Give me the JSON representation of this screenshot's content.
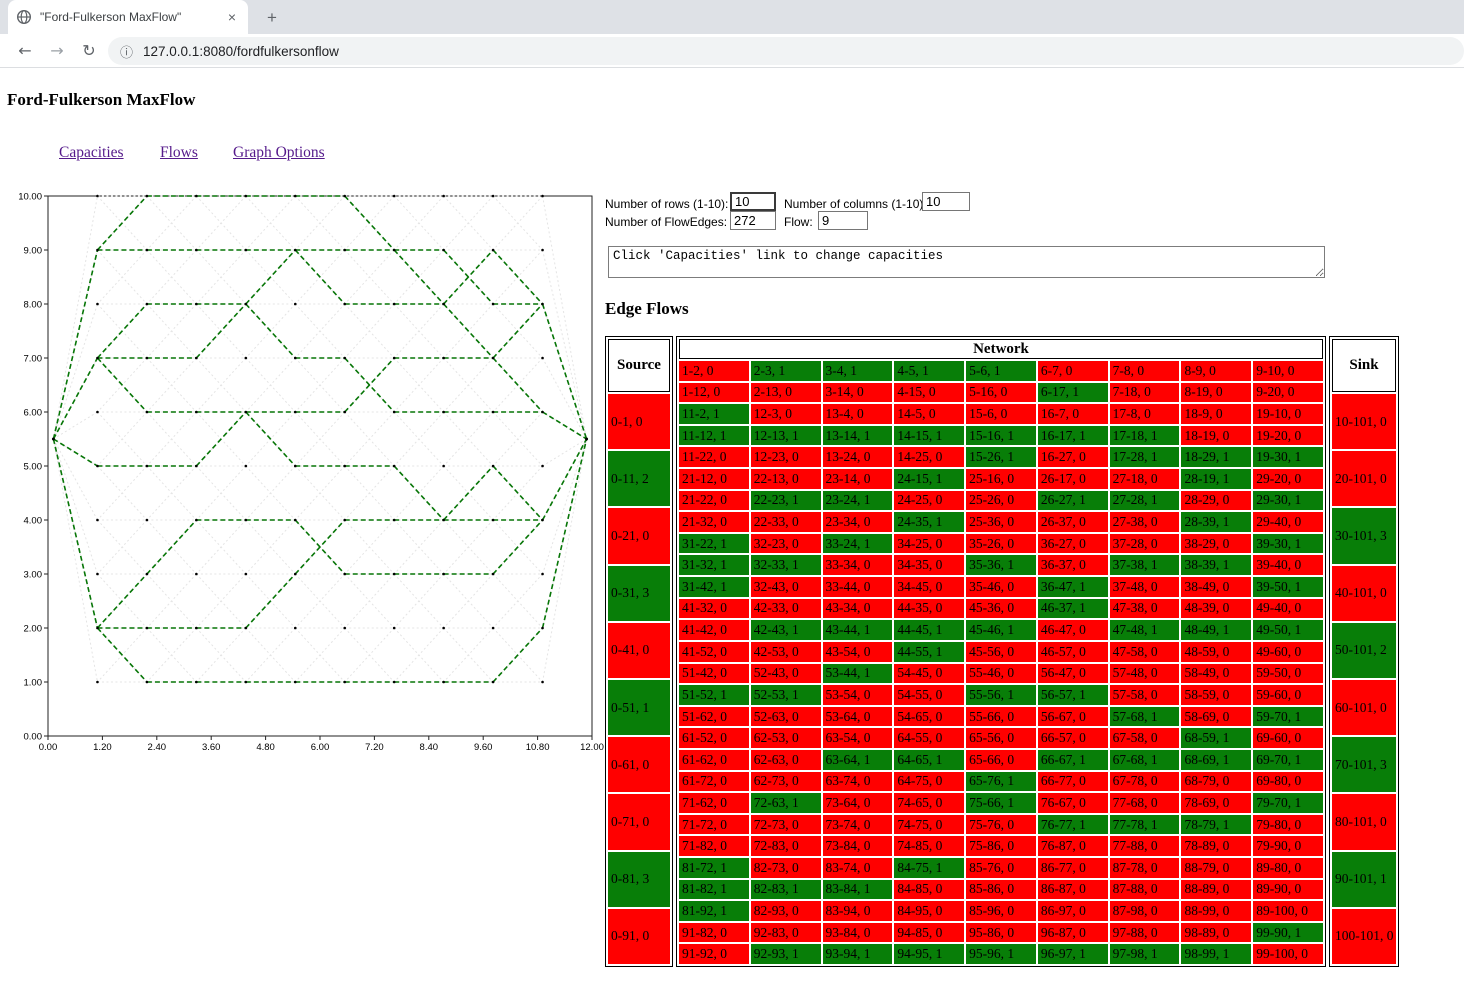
{
  "browser": {
    "tab_title": "\"Ford-Fulkerson MaxFlow\"",
    "close_glyph": "×",
    "new_tab_glyph": "+",
    "back_glyph": "←",
    "forward_glyph": "→",
    "reload_glyph": "↻",
    "info_glyph": "ⓘ",
    "url": "127.0.0.1:8080/fordfulkersonflow"
  },
  "page": {
    "title": "Ford-Fulkerson MaxFlow",
    "nav_links": [
      {
        "label": "Capacities"
      },
      {
        "label": "Flows"
      },
      {
        "label": "Graph Options"
      }
    ],
    "form": {
      "rows_label": "Number of rows (1-10):",
      "rows_value": "10",
      "columns_label": "Number of columns (1-10):",
      "columns_value": "10",
      "flowedges_label": "Number of FlowEdges:",
      "flowedges_value": "272",
      "flow_label": "Flow:",
      "flow_value": "9",
      "message": "Click 'Capacities' link to change capacities"
    },
    "section_heading": "Edge Flows"
  },
  "table": {
    "source_header": "Source",
    "network_header": "Network",
    "sink_header": "Sink",
    "colors": {
      "no_flow": "#FF0000",
      "flow": "#087E08"
    },
    "source_cells": [
      "0-1, 0",
      "0-11, 2",
      "0-21, 0",
      "0-31, 3",
      "0-41, 0",
      "0-51, 1",
      "0-61, 0",
      "0-71, 0",
      "0-81, 3",
      "0-91, 0"
    ],
    "sink_cells": [
      "10-101, 0",
      "20-101, 0",
      "30-101, 3",
      "40-101, 0",
      "50-101, 2",
      "60-101, 0",
      "70-101, 3",
      "80-101, 0",
      "90-101, 1",
      "100-101, 0"
    ],
    "network_rows": [
      [
        "1-2, 0",
        "2-3, 1",
        "3-4, 1",
        "4-5, 1",
        "5-6, 1",
        "6-7, 0",
        "7-8, 0",
        "8-9, 0",
        "9-10, 0"
      ],
      [
        "1-12, 0",
        "2-13, 0",
        "3-14, 0",
        "4-15, 0",
        "5-16, 0",
        "6-17, 1",
        "7-18, 0",
        "8-19, 0",
        "9-20, 0"
      ],
      [
        "11-2, 1",
        "12-3, 0",
        "13-4, 0",
        "14-5, 0",
        "15-6, 0",
        "16-7, 0",
        "17-8, 0",
        "18-9, 0",
        "19-10, 0"
      ],
      [
        "11-12, 1",
        "12-13, 1",
        "13-14, 1",
        "14-15, 1",
        "15-16, 1",
        "16-17, 1",
        "17-18, 1",
        "18-19, 0",
        "19-20, 0"
      ],
      [
        "11-22, 0",
        "12-23, 0",
        "13-24, 0",
        "14-25, 0",
        "15-26, 1",
        "16-27, 0",
        "17-28, 1",
        "18-29, 1",
        "19-30, 1"
      ],
      [
        "21-12, 0",
        "22-13, 0",
        "23-14, 0",
        "24-15, 1",
        "25-16, 0",
        "26-17, 0",
        "27-18, 0",
        "28-19, 1",
        "29-20, 0"
      ],
      [
        "21-22, 0",
        "22-23, 1",
        "23-24, 1",
        "24-25, 0",
        "25-26, 0",
        "26-27, 1",
        "27-28, 1",
        "28-29, 0",
        "29-30, 1"
      ],
      [
        "21-32, 0",
        "22-33, 0",
        "23-34, 0",
        "24-35, 1",
        "25-36, 0",
        "26-37, 0",
        "27-38, 0",
        "28-39, 1",
        "29-40, 0"
      ],
      [
        "31-22, 1",
        "32-23, 0",
        "33-24, 1",
        "34-25, 0",
        "35-26, 0",
        "36-27, 0",
        "37-28, 0",
        "38-29, 0",
        "39-30, 1"
      ],
      [
        "31-32, 1",
        "32-33, 1",
        "33-34, 0",
        "34-35, 0",
        "35-36, 1",
        "36-37, 0",
        "37-38, 1",
        "38-39, 1",
        "39-40, 0"
      ],
      [
        "31-42, 1",
        "32-43, 0",
        "33-44, 0",
        "34-45, 0",
        "35-46, 0",
        "36-47, 1",
        "37-48, 0",
        "38-49, 0",
        "39-50, 1"
      ],
      [
        "41-32, 0",
        "42-33, 0",
        "43-34, 0",
        "44-35, 0",
        "45-36, 0",
        "46-37, 1",
        "47-38, 0",
        "48-39, 0",
        "49-40, 0"
      ],
      [
        "41-42, 0",
        "42-43, 1",
        "43-44, 1",
        "44-45, 1",
        "45-46, 1",
        "46-47, 0",
        "47-48, 1",
        "48-49, 1",
        "49-50, 1"
      ],
      [
        "41-52, 0",
        "42-53, 0",
        "43-54, 0",
        "44-55, 1",
        "45-56, 0",
        "46-57, 0",
        "47-58, 0",
        "48-59, 0",
        "49-60, 0"
      ],
      [
        "51-42, 0",
        "52-43, 0",
        "53-44, 1",
        "54-45, 0",
        "55-46, 0",
        "56-47, 0",
        "57-48, 0",
        "58-49, 0",
        "59-50, 0"
      ],
      [
        "51-52, 1",
        "52-53, 1",
        "53-54, 0",
        "54-55, 0",
        "55-56, 1",
        "56-57, 1",
        "57-58, 0",
        "58-59, 0",
        "59-60, 0"
      ],
      [
        "51-62, 0",
        "52-63, 0",
        "53-64, 0",
        "54-65, 0",
        "55-66, 0",
        "56-67, 0",
        "57-68, 1",
        "58-69, 0",
        "59-70, 1"
      ],
      [
        "61-52, 0",
        "62-53, 0",
        "63-54, 0",
        "64-55, 0",
        "65-56, 0",
        "66-57, 0",
        "67-58, 0",
        "68-59, 1",
        "69-60, 0"
      ],
      [
        "61-62, 0",
        "62-63, 0",
        "63-64, 1",
        "64-65, 1",
        "65-66, 0",
        "66-67, 1",
        "67-68, 1",
        "68-69, 1",
        "69-70, 1"
      ],
      [
        "61-72, 0",
        "62-73, 0",
        "63-74, 0",
        "64-75, 0",
        "65-76, 1",
        "66-77, 0",
        "67-78, 0",
        "68-79, 0",
        "69-80, 0"
      ],
      [
        "71-62, 0",
        "72-63, 1",
        "73-64, 0",
        "74-65, 0",
        "75-66, 1",
        "76-67, 0",
        "77-68, 0",
        "78-69, 0",
        "79-70, 1"
      ],
      [
        "71-72, 0",
        "72-73, 0",
        "73-74, 0",
        "74-75, 0",
        "75-76, 0",
        "76-77, 1",
        "77-78, 1",
        "78-79, 1",
        "79-80, 0"
      ],
      [
        "71-82, 0",
        "72-83, 0",
        "73-84, 0",
        "74-85, 0",
        "75-86, 0",
        "76-87, 0",
        "77-88, 0",
        "78-89, 0",
        "79-90, 0"
      ],
      [
        "81-72, 1",
        "82-73, 0",
        "83-74, 0",
        "84-75, 1",
        "85-76, 0",
        "86-77, 0",
        "87-78, 0",
        "88-79, 0",
        "89-80, 0"
      ],
      [
        "81-82, 1",
        "82-83, 1",
        "83-84, 1",
        "84-85, 0",
        "85-86, 0",
        "86-87, 0",
        "87-88, 0",
        "88-89, 0",
        "89-90, 0"
      ],
      [
        "81-92, 1",
        "82-93, 0",
        "83-94, 0",
        "84-95, 0",
        "85-96, 0",
        "86-97, 0",
        "87-98, 0",
        "88-99, 0",
        "89-100, 0"
      ],
      [
        "91-82, 0",
        "92-83, 0",
        "93-84, 0",
        "94-85, 0",
        "95-86, 0",
        "96-87, 0",
        "97-88, 0",
        "98-89, 0",
        "99-90, 1"
      ],
      [
        "91-92, 0",
        "92-93, 1",
        "93-94, 1",
        "94-95, 1",
        "95-96, 1",
        "96-97, 1",
        "97-98, 1",
        "98-99, 1",
        "99-100, 0"
      ]
    ]
  },
  "chart_data": {
    "type": "network-graph",
    "xlim": [
      0,
      12
    ],
    "ylim": [
      0,
      10
    ],
    "x_ticks": [
      "0.00",
      "1.20",
      "2.40",
      "3.60",
      "4.80",
      "6.00",
      "7.20",
      "8.40",
      "9.60",
      "10.80",
      "12.00"
    ],
    "y_ticks": [
      "0.00",
      "1.00",
      "2.00",
      "3.00",
      "4.00",
      "5.00",
      "6.00",
      "7.00",
      "8.00",
      "9.00",
      "10.00"
    ],
    "grid_rows": 10,
    "grid_cols": 10,
    "source_node": {
      "id": 0,
      "x": 0,
      "y": 5.5
    },
    "sink_node": {
      "id": 101,
      "x": 12,
      "y": 5.5
    },
    "node_layout": "node v (1-100): col=((v-1)%10)+1 at x=col*12/11, row=floor((v-1)/10)+1 at y=11-row",
    "edge_sets": "all lattice edges (horizontal + diagonals + source/sink fans) drawn light gray dashed; edges with flow>0 (from table cells) drawn green dashed",
    "flow_edge_color": "#067506",
    "idle_edge_color": "#E4E4E4",
    "node_dot_color": "#000000"
  }
}
